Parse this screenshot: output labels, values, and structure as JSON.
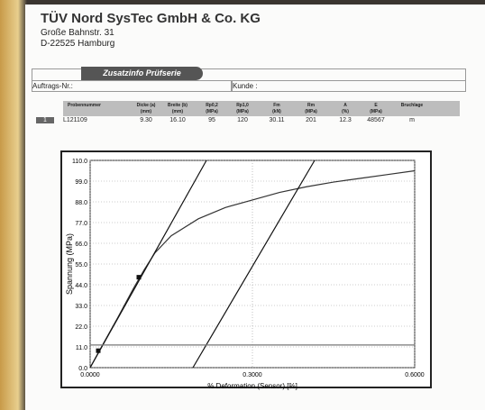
{
  "header": {
    "company": "TÜV Nord SysTec GmbH & Co. KG",
    "street": "Große Bahnstr. 31",
    "city": "D-22525 Hamburg"
  },
  "section": {
    "title": "Zusatzinfo Prüfserie",
    "fields": [
      "Auftrags-Nr.:",
      "Kunde :"
    ]
  },
  "table": {
    "columns": [
      [
        "Probennummer"
      ],
      [
        "Dicke (a)",
        "(mm)"
      ],
      [
        "Breite (b)",
        "(mm)"
      ],
      [
        "Rp0,2",
        "(MPa)"
      ],
      [
        "Rp1,0",
        "(MPa)"
      ],
      [
        "Fm",
        "(kN)"
      ],
      [
        "Rm",
        "(MPa)"
      ],
      [
        "A",
        "(%)"
      ],
      [
        "E",
        "(MPa)"
      ],
      [
        "Bruchlage"
      ]
    ],
    "rows": [
      {
        "index": "1",
        "cells": [
          "L121109",
          "9.30",
          "16.10",
          "95",
          "120",
          "30.11",
          "201",
          "12.3",
          "48567",
          "m"
        ]
      }
    ]
  },
  "chart": {
    "type": "line",
    "ylabel": "Spannung (MPa)",
    "xlabel": "% Deformation (Sensor) [%]",
    "xlim": [
      0,
      0.6
    ],
    "ylim": [
      0,
      110
    ],
    "xticks": [
      {
        "value": 0,
        "label": "0.0000"
      },
      {
        "value": 0.3,
        "label": "0.3000"
      },
      {
        "value": 0.6,
        "label": "0.6000"
      }
    ],
    "yticks": [
      {
        "value": 0,
        "label": "0.0"
      },
      {
        "value": 11,
        "label": "11.0"
      },
      {
        "value": 22,
        "label": "22.0"
      },
      {
        "value": 33,
        "label": "33.0"
      },
      {
        "value": 44,
        "label": "44.0"
      },
      {
        "value": 55,
        "label": "55.0"
      },
      {
        "value": 66,
        "label": "66.0"
      },
      {
        "value": 77,
        "label": "77.0"
      },
      {
        "value": 88,
        "label": "88.0"
      },
      {
        "value": 99,
        "label": "99.0"
      },
      {
        "value": 110,
        "label": "110.0"
      }
    ],
    "grid": true,
    "series": [
      {
        "color": "#333333",
        "x": [
          0,
          0.02,
          0.05,
          0.08,
          0.1,
          0.12,
          0.15,
          0.2,
          0.25,
          0.3,
          0.35,
          0.4,
          0.45,
          0.5,
          0.55,
          0.6
        ],
        "values": [
          0,
          10.5,
          26,
          42,
          52,
          61,
          70,
          79,
          85,
          89,
          93,
          96,
          98.5,
          100.5,
          102.5,
          104.5
        ]
      },
      {
        "color": "#111111",
        "x": [
          0,
          0.215
        ],
        "values": [
          0,
          110
        ]
      },
      {
        "color": "#111111",
        "x": [
          0.19,
          0.415
        ],
        "values": [
          0,
          110
        ]
      },
      {
        "color": "#777777",
        "x": [
          0,
          0.6
        ],
        "values": [
          12,
          12
        ]
      }
    ],
    "markers": {
      "color": "#111111",
      "x": [
        0.015,
        0.09
      ],
      "values": [
        9,
        48
      ]
    }
  }
}
